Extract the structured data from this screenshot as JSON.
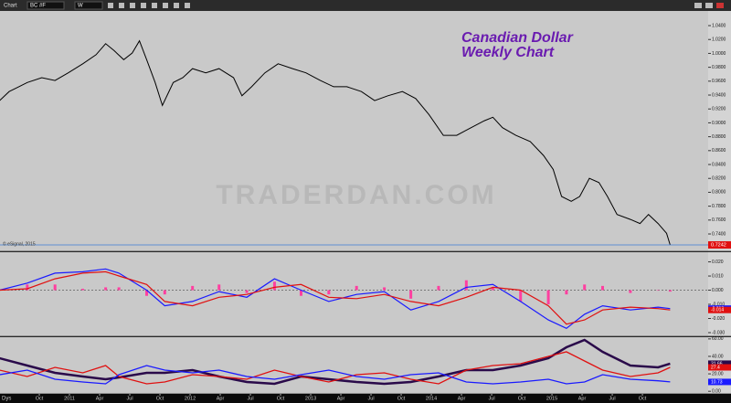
{
  "toolbar": {
    "window": "Chart",
    "symbol": "BC #F",
    "interval": "W"
  },
  "watermark": "TRADERDAN.COM",
  "annotation": [
    "Canadian Dollar",
    "Weekly Chart"
  ],
  "credit": "© eSignal, 2015",
  "x_axis_unit": "Dys",
  "chart_data": [
    {
      "type": "line",
      "color": "#000000",
      "price_line_color": "#3a7bd5",
      "xlim": [
        2010.424,
        2016.295
      ],
      "ylim": [
        0.7216,
        1.0703
      ],
      "xticks": [
        {
          "value": 2010.75,
          "label": "Oct"
        },
        {
          "value": 2011.0,
          "label": "2011"
        },
        {
          "value": 2011.25,
          "label": "Apr"
        },
        {
          "value": 2011.5,
          "label": "Jul"
        },
        {
          "value": 2011.75,
          "label": "Oct"
        },
        {
          "value": 2012.0,
          "label": "2012"
        },
        {
          "value": 2012.25,
          "label": "Apr"
        },
        {
          "value": 2012.5,
          "label": "Jul"
        },
        {
          "value": 2012.75,
          "label": "Oct"
        },
        {
          "value": 2013.0,
          "label": "2013"
        },
        {
          "value": 2013.25,
          "label": "Apr"
        },
        {
          "value": 2013.5,
          "label": "Jul"
        },
        {
          "value": 2013.75,
          "label": "Oct"
        },
        {
          "value": 2014.0,
          "label": "2014"
        },
        {
          "value": 2014.25,
          "label": "Apr"
        },
        {
          "value": 2014.5,
          "label": "Jul"
        },
        {
          "value": 2014.75,
          "label": "Oct"
        },
        {
          "value": 2015.0,
          "label": "2015"
        },
        {
          "value": 2015.25,
          "label": "Apr"
        },
        {
          "value": 2015.5,
          "label": "Jul"
        },
        {
          "value": 2015.75,
          "label": "Oct"
        }
      ],
      "yticks": [
        {
          "value": 1.04,
          "label": "1.0400"
        },
        {
          "value": 1.02,
          "label": "1.0200"
        },
        {
          "value": 1.0,
          "label": "1.0000"
        },
        {
          "value": 0.98,
          "label": "0.9800"
        },
        {
          "value": 0.96,
          "label": "0.9600"
        },
        {
          "value": 0.94,
          "label": "0.9400"
        },
        {
          "value": 0.92,
          "label": "0.9200"
        },
        {
          "value": 0.9,
          "label": "0.9000"
        },
        {
          "value": 0.88,
          "label": "0.8800"
        },
        {
          "value": 0.86,
          "label": "0.8600"
        },
        {
          "value": 0.84,
          "label": "0.8400"
        },
        {
          "value": 0.82,
          "label": "0.8200"
        },
        {
          "value": 0.8,
          "label": "0.8000"
        },
        {
          "value": 0.78,
          "label": "0.7800"
        },
        {
          "value": 0.76,
          "label": "0.7600"
        },
        {
          "value": 0.74,
          "label": "0.7400"
        }
      ],
      "x": [
        2010.42,
        2010.5,
        2010.58,
        2010.65,
        2010.77,
        2010.88,
        2010.99,
        2011.11,
        2011.22,
        2011.3,
        2011.37,
        2011.45,
        2011.52,
        2011.58,
        2011.64,
        2011.71,
        2011.77,
        2011.86,
        2011.94,
        2012.02,
        2012.13,
        2012.24,
        2012.36,
        2012.43,
        2012.51,
        2012.62,
        2012.73,
        2012.85,
        2012.96,
        2013.08,
        2013.19,
        2013.3,
        2013.42,
        2013.53,
        2013.64,
        2013.76,
        2013.87,
        2013.98,
        2014.1,
        2014.21,
        2014.33,
        2014.44,
        2014.51,
        2014.59,
        2014.7,
        2014.82,
        2014.93,
        2015.01,
        2015.08,
        2015.16,
        2015.23,
        2015.31,
        2015.39,
        2015.46,
        2015.54,
        2015.65,
        2015.73,
        2015.8,
        2015.88,
        2015.95,
        2015.98
      ],
      "values": [
        0.932,
        0.945,
        0.952,
        0.958,
        0.965,
        0.961,
        0.972,
        0.985,
        0.998,
        1.014,
        1.004,
        0.991,
        1.0005,
        1.018,
        0.991,
        0.958,
        0.925,
        0.958,
        0.965,
        0.978,
        0.972,
        0.978,
        0.965,
        0.939,
        0.952,
        0.972,
        0.985,
        0.978,
        0.972,
        0.961,
        0.952,
        0.952,
        0.945,
        0.932,
        0.939,
        0.945,
        0.935,
        0.912,
        0.882,
        0.882,
        0.893,
        0.903,
        0.908,
        0.893,
        0.882,
        0.873,
        0.853,
        0.833,
        0.794,
        0.787,
        0.794,
        0.82,
        0.814,
        0.794,
        0.768,
        0.761,
        0.755,
        0.768,
        0.755,
        0.741,
        0.7242
      ]
    },
    {
      "type": "line",
      "xlim": [
        2010.424,
        2016.295
      ],
      "ylim": [
        -0.0313,
        0.0223
      ],
      "yticks": [
        {
          "value": 0.02,
          "label": "0.020"
        },
        {
          "value": 0.01,
          "label": "0.010"
        },
        {
          "value": 0.0,
          "label": "0.000"
        },
        {
          "value": -0.01,
          "label": "-0.010"
        },
        {
          "value": -0.02,
          "label": "-0.020"
        },
        {
          "value": -0.03,
          "label": "-0.030"
        }
      ],
      "x": [
        2010.42,
        2010.65,
        2010.88,
        2011.11,
        2011.3,
        2011.41,
        2011.64,
        2011.79,
        2012.02,
        2012.24,
        2012.47,
        2012.7,
        2012.92,
        2013.15,
        2013.38,
        2013.61,
        2013.83,
        2014.06,
        2014.29,
        2014.51,
        2014.74,
        2014.97,
        2015.12,
        2015.27,
        2015.42,
        2015.65,
        2015.88,
        2015.98
      ],
      "histogram": {
        "color": "#ff3fa0",
        "values": [
          0.0,
          0.004,
          0.004,
          0.001,
          0.002,
          0.002,
          -0.004,
          -0.003,
          0.003,
          0.004,
          -0.002,
          0.006,
          -0.004,
          -0.003,
          0.003,
          0.002,
          -0.006,
          0.003,
          0.007,
          0.002,
          -0.008,
          -0.01,
          -0.003,
          0.004,
          0.003,
          -0.002,
          0.0,
          -0.001
        ]
      },
      "series": [
        {
          "color": "#1a1aff",
          "values": [
            0.0,
            0.005,
            0.012,
            0.013,
            0.015,
            0.012,
            0.0,
            -0.011,
            -0.008,
            -0.001,
            -0.005,
            0.008,
            0.0,
            -0.008,
            -0.003,
            -0.001,
            -0.014,
            -0.008,
            0.002,
            0.004,
            -0.008,
            -0.021,
            -0.027,
            -0.017,
            -0.011,
            -0.014,
            -0.012,
            -0.013
          ]
        },
        {
          "color": "#e01010",
          "values": [
            0.0,
            0.001,
            0.008,
            0.012,
            0.013,
            0.01,
            0.004,
            -0.008,
            -0.011,
            -0.005,
            -0.003,
            0.002,
            0.004,
            -0.005,
            -0.006,
            -0.003,
            -0.008,
            -0.011,
            -0.005,
            0.002,
            0.0,
            -0.011,
            -0.024,
            -0.021,
            -0.014,
            -0.012,
            -0.013,
            -0.014
          ]
        }
      ]
    },
    {
      "type": "line",
      "xlim": [
        2010.424,
        2016.295
      ],
      "ylim": [
        -4,
        63
      ],
      "yticks": [
        {
          "value": 60,
          "label": "60.00"
        },
        {
          "value": 40,
          "label": "40.00"
        },
        {
          "value": 20,
          "label": "20.00"
        },
        {
          "value": 0,
          "label": "0.00"
        }
      ],
      "x": [
        2010.42,
        2010.65,
        2010.88,
        2011.11,
        2011.3,
        2011.41,
        2011.64,
        2011.79,
        2012.02,
        2012.24,
        2012.47,
        2012.7,
        2012.92,
        2013.15,
        2013.38,
        2013.61,
        2013.83,
        2014.06,
        2014.29,
        2014.51,
        2014.74,
        2014.97,
        2015.12,
        2015.27,
        2015.42,
        2015.65,
        2015.88,
        2015.98
      ],
      "series": [
        {
          "color": "#2a0a4a",
          "width": 2.5,
          "values": [
            37.9,
            29.5,
            21.1,
            16.9,
            13.8,
            15.9,
            21.1,
            21.1,
            24.3,
            16.9,
            10.7,
            8.6,
            16.9,
            13.8,
            10.7,
            8.6,
            10.7,
            16.9,
            24.3,
            24.3,
            29.5,
            37.9,
            50.4,
            58.8,
            45.2,
            29.5,
            27.4,
            31.66
          ]
        },
        {
          "color": "#e01010",
          "width": 1.3,
          "values": [
            24.3,
            16.9,
            27.4,
            21.1,
            29.5,
            16.9,
            8.6,
            10.7,
            19.0,
            16.9,
            13.8,
            24.3,
            16.9,
            10.7,
            19.0,
            21.1,
            13.8,
            8.6,
            24.3,
            29.5,
            31.6,
            40.0,
            45.2,
            34.7,
            24.3,
            16.9,
            21.1,
            27.4
          ]
        },
        {
          "color": "#1a1aff",
          "width": 1.3,
          "values": [
            19.0,
            24.3,
            13.8,
            10.7,
            8.6,
            19.0,
            29.5,
            24.3,
            21.1,
            24.3,
            16.9,
            13.8,
            19.0,
            24.3,
            16.9,
            13.8,
            19.0,
            21.1,
            10.7,
            8.6,
            10.7,
            13.8,
            8.6,
            10.7,
            19.0,
            13.8,
            12.0,
            10.73
          ]
        }
      ]
    }
  ]
}
